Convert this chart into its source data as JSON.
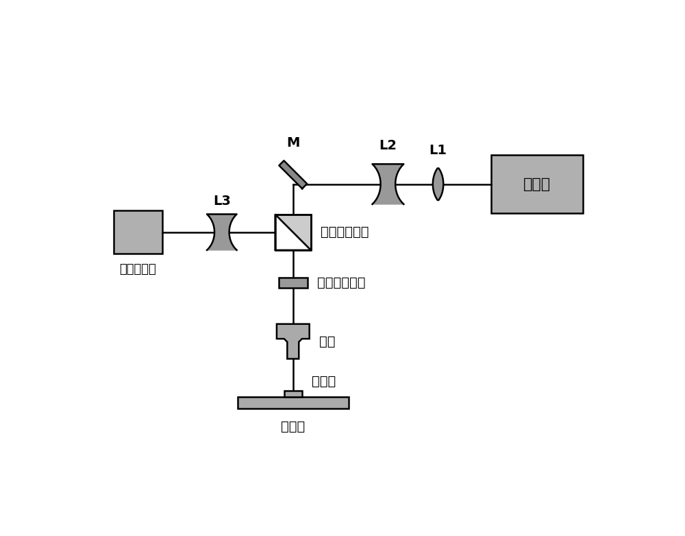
{
  "bg_color": "#ffffff",
  "line_color": "#000000",
  "fill_gray": "#aaaaaa",
  "fill_light": "#cccccc",
  "figsize": [
    10.0,
    7.82
  ],
  "dpi": 100,
  "labels": {
    "laser": "激光器",
    "M": "M",
    "L1": "L1",
    "L2": "L2",
    "L3": "L3",
    "pbs": "偏振分光棱镜",
    "qwp": "四分之一波片",
    "obj": "物镜",
    "sapphire": "蓝宝石",
    "stage": "位移台",
    "sensor": "图像传感器"
  }
}
